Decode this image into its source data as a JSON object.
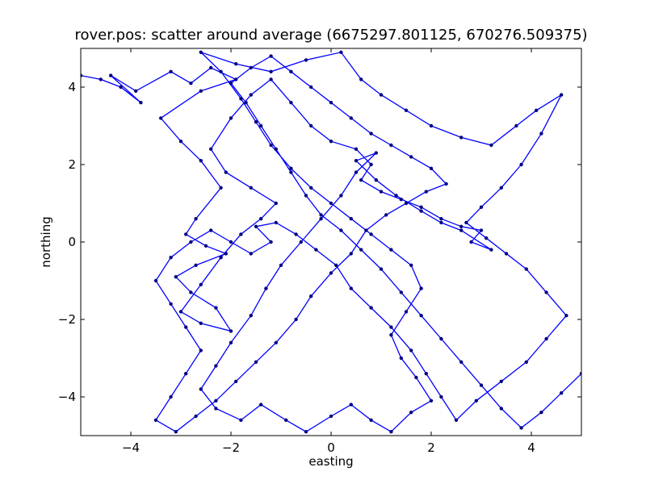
{
  "chart_data": {
    "type": "line",
    "title": "rover.pos: scatter around average (6675297.801125, 670276.509375)",
    "xlabel": "easting",
    "ylabel": "northing",
    "xlim": [
      -5,
      5
    ],
    "ylim": [
      -5,
      5
    ],
    "x_ticks": [
      -4,
      -2,
      0,
      2,
      4
    ],
    "x_tick_labels": [
      "−4",
      "−2",
      "0",
      "2",
      "4"
    ],
    "y_ticks": [
      -4,
      -2,
      0,
      2,
      4
    ],
    "y_tick_labels": [
      "−4",
      "−2",
      "0",
      "2",
      "4"
    ],
    "grid": false,
    "legend": "none",
    "markers": true,
    "series": [
      {
        "color": "#0000ff",
        "marker_color": "#000080",
        "points": [
          [
            -5.0,
            4.3
          ],
          [
            -4.6,
            4.2
          ],
          [
            -4.2,
            4.0
          ],
          [
            -3.8,
            3.6
          ],
          [
            -4.4,
            4.3
          ],
          [
            -3.9,
            3.9
          ],
          [
            -3.2,
            4.4
          ],
          [
            -2.8,
            4.1
          ],
          [
            -2.4,
            4.5
          ],
          [
            -1.9,
            4.2
          ],
          [
            -2.6,
            3.9
          ],
          [
            -3.4,
            3.2
          ],
          [
            -3.0,
            2.6
          ],
          [
            -2.6,
            2.1
          ],
          [
            -2.2,
            1.4
          ],
          [
            -2.7,
            0.6
          ],
          [
            -2.9,
            0.2
          ],
          [
            -2.5,
            -0.1
          ],
          [
            -2.1,
            -0.3
          ],
          [
            -2.7,
            -0.6
          ],
          [
            -3.1,
            -0.9
          ],
          [
            -2.8,
            -1.3
          ],
          [
            -2.3,
            -1.7
          ],
          [
            -2.0,
            -2.3
          ],
          [
            -2.6,
            -2.1
          ],
          [
            -3.0,
            -1.8
          ],
          [
            -2.6,
            -1.1
          ],
          [
            -2.2,
            -0.4
          ],
          [
            -1.8,
            0.2
          ],
          [
            -1.4,
            0.6
          ],
          [
            -1.1,
            1.0
          ],
          [
            -1.6,
            1.4
          ],
          [
            -2.1,
            1.8
          ],
          [
            -2.4,
            2.4
          ],
          [
            -2.0,
            3.2
          ],
          [
            -1.6,
            3.8
          ],
          [
            -1.2,
            4.2
          ],
          [
            -0.8,
            3.6
          ],
          [
            -0.4,
            3.0
          ],
          [
            0.0,
            2.6
          ],
          [
            0.5,
            2.4
          ],
          [
            0.8,
            2.0
          ],
          [
            0.6,
            1.6
          ],
          [
            1.0,
            1.3
          ],
          [
            1.4,
            1.1
          ],
          [
            1.8,
            0.9
          ],
          [
            2.2,
            0.6
          ],
          [
            2.6,
            0.4
          ],
          [
            3.0,
            0.3
          ],
          [
            2.8,
            0.0
          ],
          [
            3.2,
            -0.2
          ],
          [
            2.6,
            0.3
          ],
          [
            2.2,
            0.5
          ],
          [
            1.8,
            0.8
          ],
          [
            1.3,
            1.2
          ],
          [
            0.9,
            1.6
          ],
          [
            0.5,
            2.1
          ],
          [
            0.9,
            2.3
          ],
          [
            0.5,
            1.8
          ],
          [
            0.2,
            1.2
          ],
          [
            -0.2,
            0.6
          ],
          [
            -0.6,
            0.0
          ],
          [
            -1.0,
            -0.6
          ],
          [
            -1.3,
            -1.2
          ],
          [
            -1.6,
            -1.9
          ],
          [
            -2.0,
            -2.6
          ],
          [
            -2.3,
            -3.2
          ],
          [
            -2.6,
            -3.8
          ],
          [
            -2.3,
            -4.3
          ],
          [
            -1.8,
            -4.6
          ],
          [
            -1.4,
            -4.2
          ],
          [
            -0.9,
            -4.6
          ],
          [
            -0.5,
            -4.9
          ],
          [
            0.0,
            -4.5
          ],
          [
            0.4,
            -4.2
          ],
          [
            0.8,
            -4.6
          ],
          [
            1.2,
            -4.9
          ],
          [
            1.6,
            -4.4
          ],
          [
            2.0,
            -4.1
          ],
          [
            1.7,
            -3.5
          ],
          [
            1.4,
            -3.0
          ],
          [
            1.2,
            -2.4
          ],
          [
            1.5,
            -1.8
          ],
          [
            1.8,
            -1.2
          ],
          [
            1.6,
            -0.6
          ],
          [
            1.2,
            -0.2
          ],
          [
            0.8,
            0.2
          ],
          [
            0.4,
            0.6
          ],
          [
            0.0,
            1.0
          ],
          [
            -0.4,
            1.4
          ],
          [
            -0.8,
            1.9
          ],
          [
            -1.2,
            2.5
          ],
          [
            -1.5,
            3.1
          ],
          [
            -1.8,
            3.7
          ],
          [
            -2.2,
            4.4
          ],
          [
            -2.6,
            4.9
          ],
          [
            -1.9,
            4.6
          ],
          [
            -1.2,
            4.4
          ],
          [
            -0.5,
            4.7
          ],
          [
            0.2,
            4.9
          ],
          [
            0.6,
            4.2
          ],
          [
            1.0,
            3.8
          ],
          [
            1.5,
            3.4
          ],
          [
            2.0,
            3.0
          ],
          [
            2.6,
            2.7
          ],
          [
            3.2,
            2.5
          ],
          [
            3.7,
            3.0
          ],
          [
            4.1,
            3.4
          ],
          [
            4.6,
            3.8
          ],
          [
            4.2,
            2.8
          ],
          [
            3.8,
            2.0
          ],
          [
            3.4,
            1.4
          ],
          [
            3.0,
            0.9
          ],
          [
            2.7,
            0.5
          ],
          [
            3.1,
            0.1
          ],
          [
            3.5,
            -0.3
          ],
          [
            3.9,
            -0.7
          ],
          [
            4.3,
            -1.3
          ],
          [
            4.7,
            -1.9
          ],
          [
            4.3,
            -2.5
          ],
          [
            3.9,
            -3.1
          ],
          [
            3.4,
            -3.6
          ],
          [
            2.9,
            -4.1
          ],
          [
            2.5,
            -4.6
          ],
          [
            2.2,
            -4.0
          ],
          [
            1.9,
            -3.4
          ],
          [
            1.6,
            -2.8
          ],
          [
            1.2,
            -2.2
          ],
          [
            0.8,
            -1.7
          ],
          [
            0.4,
            -1.2
          ],
          [
            0.1,
            -0.6
          ],
          [
            -0.3,
            -0.2
          ],
          [
            -0.7,
            0.2
          ],
          [
            -1.1,
            0.5
          ],
          [
            -1.5,
            0.4
          ],
          [
            -1.2,
            0.0
          ],
          [
            -1.6,
            -0.3
          ],
          [
            -2.0,
            0.0
          ],
          [
            -2.4,
            0.3
          ],
          [
            -2.8,
            0.0
          ],
          [
            -3.2,
            -0.4
          ],
          [
            -3.5,
            -1.0
          ],
          [
            -3.2,
            -1.6
          ],
          [
            -2.9,
            -2.2
          ],
          [
            -2.6,
            -2.8
          ],
          [
            -2.9,
            -3.4
          ],
          [
            -3.2,
            -4.0
          ],
          [
            -3.5,
            -4.6
          ],
          [
            -3.1,
            -4.9
          ],
          [
            -2.7,
            -4.5
          ],
          [
            -2.3,
            -4.1
          ],
          [
            -1.9,
            -3.6
          ],
          [
            -1.5,
            -3.1
          ],
          [
            -1.1,
            -2.6
          ],
          [
            -0.7,
            -2.0
          ],
          [
            -0.4,
            -1.4
          ],
          [
            0.0,
            -0.8
          ],
          [
            0.4,
            -0.3
          ],
          [
            0.7,
            0.3
          ],
          [
            1.1,
            0.7
          ],
          [
            1.5,
            1.0
          ],
          [
            1.9,
            1.3
          ],
          [
            2.3,
            1.5
          ],
          [
            2.0,
            1.9
          ],
          [
            1.6,
            2.2
          ],
          [
            1.2,
            2.5
          ],
          [
            0.8,
            2.8
          ],
          [
            0.4,
            3.2
          ],
          [
            0.0,
            3.6
          ],
          [
            -0.4,
            4.0
          ],
          [
            -0.8,
            4.4
          ],
          [
            -1.2,
            4.8
          ],
          [
            -1.6,
            4.5
          ],
          [
            -2.0,
            4.1
          ],
          [
            -1.7,
            3.6
          ],
          [
            -1.4,
            3.0
          ],
          [
            -1.1,
            2.4
          ],
          [
            -0.8,
            1.8
          ],
          [
            -0.5,
            1.2
          ],
          [
            -0.2,
            0.7
          ],
          [
            0.2,
            0.3
          ],
          [
            0.6,
            -0.2
          ],
          [
            1.0,
            -0.7
          ],
          [
            1.4,
            -1.3
          ],
          [
            1.8,
            -1.9
          ],
          [
            2.2,
            -2.5
          ],
          [
            2.6,
            -3.1
          ],
          [
            3.0,
            -3.7
          ],
          [
            3.4,
            -4.3
          ],
          [
            3.8,
            -4.8
          ],
          [
            4.2,
            -4.4
          ],
          [
            4.6,
            -3.9
          ],
          [
            5.0,
            -3.4
          ]
        ]
      }
    ]
  }
}
